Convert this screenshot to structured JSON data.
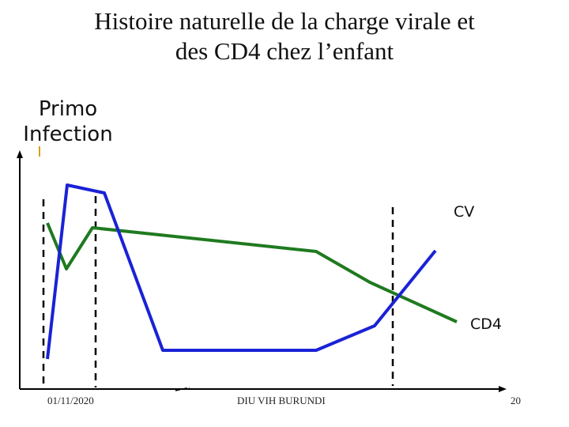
{
  "slide": {
    "title_line1": "Histoire naturelle de la charge virale et",
    "title_line2": "des CD4 chez l’enfant"
  },
  "annotation": {
    "primo_line1": "Primo",
    "primo_line2": "Infection"
  },
  "curve_labels": {
    "cv": "CV",
    "cd4": "CD4"
  },
  "colors": {
    "cv_line": "#1a22d6",
    "cd4_line": "#1f7a1f",
    "axis": "#000000",
    "dashed": "#000000"
  },
  "footer": {
    "date": "01/11/2020",
    "center": "DIU VIH BURUNDI",
    "page": "20"
  }
}
